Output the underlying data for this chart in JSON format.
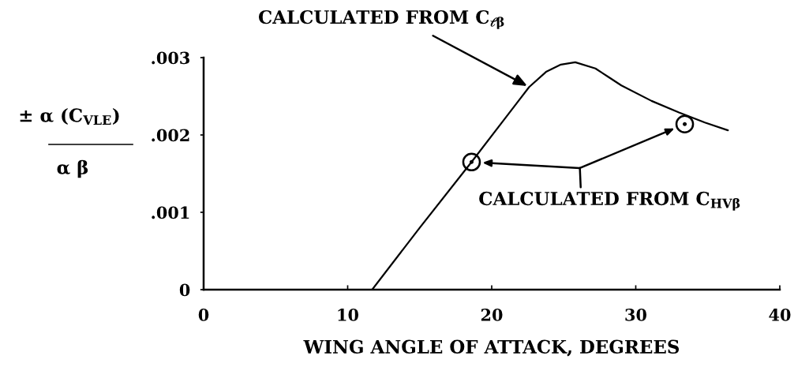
{
  "chart_data": {
    "type": "line",
    "xlabel": "WING ANGLE OF ATTACK, DEGREES",
    "ylabel": "± α (C$_{VLE}$)\nα β",
    "xlim": [
      0,
      40
    ],
    "ylim": [
      0,
      0.003
    ],
    "xticks": [
      0,
      10,
      20,
      30,
      40
    ],
    "yticks": [
      0,
      {
        "value": 0.001,
        "label": ".001"
      },
      {
        "value": 0.002,
        "label": ".002"
      },
      {
        "value": 0.003,
        "label": ".003"
      }
    ],
    "series": [
      {
        "color": "#000000",
        "x": [
          11.7,
          15.0,
          18.6,
          20.7,
          21.9,
          22.6,
          23.8,
          24.8,
          25.8,
          27.2,
          28.1,
          29.0,
          31.1,
          33.0,
          34.8,
          36.4
        ],
        "values": [
          0,
          0.0008,
          0.00165,
          0.00216,
          0.00245,
          0.00262,
          0.00282,
          0.00291,
          0.00294,
          0.00286,
          0.00275,
          0.00264,
          0.00244,
          0.00229,
          0.00216,
          0.00206
        ]
      },
      {
        "type": "scatter",
        "color": "#000000",
        "marker": "circle",
        "x": [
          18.6,
          33.4
        ],
        "values": [
          0.00165,
          0.00214
        ]
      }
    ],
    "annotations": [
      {
        "text": "CALCULATED FROM C$_{ℓβ}$",
        "x": 22.6,
        "y": 0.00262
      },
      {
        "text": "CALCULATED FROM C$_{HVβ}$",
        "x": 18.6,
        "y": 0.00165
      }
    ]
  }
}
